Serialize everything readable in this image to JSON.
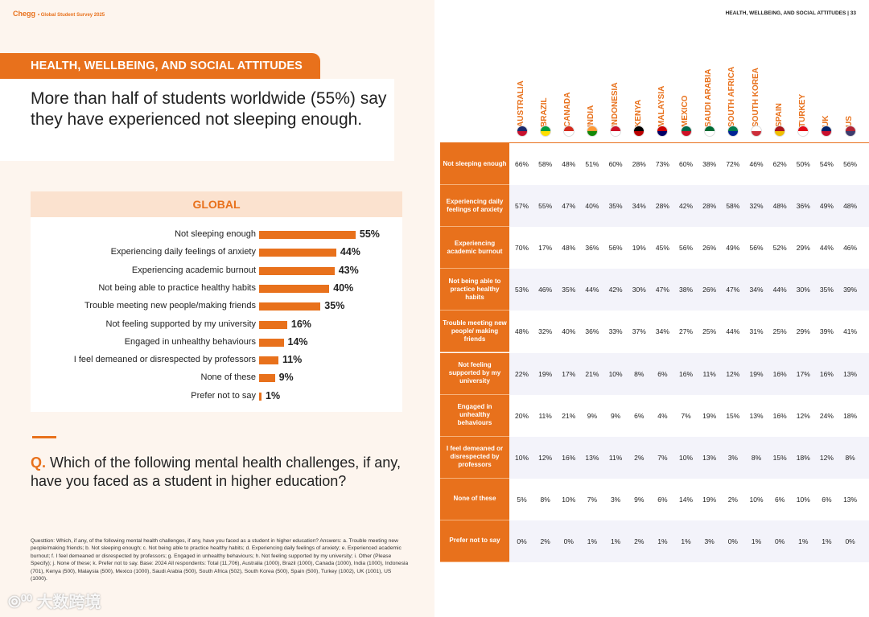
{
  "left": {
    "brand": "Chegg",
    "brand_sub": "• Global Student Survey 2025",
    "section": "HEALTH, WELLBEING, AND SOCIAL ATTITUDES",
    "headline": "More than half of students worldwide (55%) say they have experienced not sleeping enough.",
    "global_label": "GLOBAL",
    "q_prefix": "Q.",
    "question": "Which of the following mental health challenges, if any, have you faced as a student in higher education?",
    "footnote": "Questtion: Which, if any, of the following mental health challenges, if any, have you faced as a student in higher education? Answers: a. Trouble meeting new people/making friends; b. Not sleeping enough; c. Not being able to practice healthy habits; d. Experiencing daily feelings of anxiety; e. Experienced academic burnout; f. I feel demeaned or disrespected by professors; g. Engaged in unhealthy behaviours; h. Not feeling supported by my university; i. Other (Please Specify); j. None of these; k. Prefer not to say. Base: 2024 All respondents: Total (11,706), Australia (1000), Brazil (1000), Canada (1000), India (1000), Indonesia (701), Kenya (500), Malaysia (500), Mexico (1000), Saudi Arabia (500), South Africa (502), South Korea (500), Spain (500), Turkey (1002), UK (1001), US (1000).",
    "watermark": "大数跨境"
  },
  "chart_data": {
    "type": "bar",
    "title": "GLOBAL",
    "categories": [
      "Not sleeping enough",
      "Experiencing daily feelings of anxiety",
      "Experiencing academic burnout",
      "Not being able to practice healthy habits",
      "Trouble meeting new people/making friends",
      "Not feeling supported by my university",
      "Engaged in unhealthy behaviours",
      "I feel demeaned or disrespected by professors",
      "None of these",
      "Prefer not to say"
    ],
    "values": [
      55,
      44,
      43,
      40,
      35,
      16,
      14,
      11,
      9,
      1
    ],
    "labels": [
      "55%",
      "44%",
      "43%",
      "40%",
      "35%",
      "16%",
      "14%",
      "11%",
      "9%",
      "1%"
    ],
    "unit": "%",
    "color": "#e8711c"
  },
  "right": {
    "header": "HEALTH, WELLBEING, AND SOCIAL ATTITUDES  |  33",
    "countries": [
      "AUSTRALIA",
      "BRAZIL",
      "CANADA",
      "INDIA",
      "INDONESIA",
      "KENYA",
      "MALAYSIA",
      "MEXICO",
      "SAUDI ARABIA",
      "SOUTH AFRICA",
      "SOUTH KOREA",
      "SPAIN",
      "TURKEY",
      "UK",
      "US"
    ],
    "flag_colors": [
      [
        "#1a2a6c",
        "#c8102e"
      ],
      [
        "#009c3b",
        "#ffdf00"
      ],
      [
        "#d52b1e",
        "#fff"
      ],
      [
        "#ff9933",
        "#138808"
      ],
      [
        "#ce1126",
        "#fff"
      ],
      [
        "#000",
        "#bb0000"
      ],
      [
        "#cc0001",
        "#010066"
      ],
      [
        "#006847",
        "#ce1126"
      ],
      [
        "#006c35",
        "#fff"
      ],
      [
        "#007a4d",
        "#002395"
      ],
      [
        "#fff",
        "#cd2e3a"
      ],
      [
        "#aa151b",
        "#f1bf00"
      ],
      [
        "#e30a17",
        "#fff"
      ],
      [
        "#012169",
        "#c8102e"
      ],
      [
        "#b22234",
        "#3c3b6e"
      ]
    ],
    "rows": [
      {
        "label": "Not sleeping enough",
        "values": [
          "66%",
          "58%",
          "48%",
          "51%",
          "60%",
          "28%",
          "73%",
          "60%",
          "38%",
          "72%",
          "46%",
          "62%",
          "50%",
          "54%",
          "56%"
        ]
      },
      {
        "label": "Experiencing daily feelings of anxiety",
        "values": [
          "57%",
          "55%",
          "47%",
          "40%",
          "35%",
          "34%",
          "28%",
          "42%",
          "28%",
          "58%",
          "32%",
          "48%",
          "36%",
          "49%",
          "48%"
        ]
      },
      {
        "label": "Experiencing academic burnout",
        "values": [
          "70%",
          "17%",
          "48%",
          "36%",
          "56%",
          "19%",
          "45%",
          "56%",
          "26%",
          "49%",
          "56%",
          "52%",
          "29%",
          "44%",
          "46%"
        ]
      },
      {
        "label": "Not being able to practice healthy habits",
        "values": [
          "53%",
          "46%",
          "35%",
          "44%",
          "42%",
          "30%",
          "47%",
          "38%",
          "26%",
          "47%",
          "34%",
          "44%",
          "30%",
          "35%",
          "39%"
        ]
      },
      {
        "label": "Trouble meeting new people/ making friends",
        "values": [
          "48%",
          "32%",
          "40%",
          "36%",
          "33%",
          "37%",
          "34%",
          "27%",
          "25%",
          "44%",
          "31%",
          "25%",
          "29%",
          "39%",
          "41%"
        ]
      },
      {
        "label": "Not feeling supported by my university",
        "values": [
          "22%",
          "19%",
          "17%",
          "21%",
          "10%",
          "8%",
          "6%",
          "16%",
          "11%",
          "12%",
          "19%",
          "16%",
          "17%",
          "16%",
          "13%"
        ]
      },
      {
        "label": "Engaged in unhealthy behaviours",
        "values": [
          "20%",
          "11%",
          "21%",
          "9%",
          "9%",
          "6%",
          "4%",
          "7%",
          "19%",
          "15%",
          "13%",
          "16%",
          "12%",
          "24%",
          "18%"
        ]
      },
      {
        "label": "I feel demeaned or disrespected by professors",
        "values": [
          "10%",
          "12%",
          "16%",
          "13%",
          "11%",
          "2%",
          "7%",
          "10%",
          "13%",
          "3%",
          "8%",
          "15%",
          "18%",
          "12%",
          "8%"
        ]
      },
      {
        "label": "None of these",
        "values": [
          "5%",
          "8%",
          "10%",
          "7%",
          "3%",
          "9%",
          "6%",
          "14%",
          "19%",
          "2%",
          "10%",
          "6%",
          "10%",
          "6%",
          "13%"
        ]
      },
      {
        "label": "Prefer not to say",
        "values": [
          "0%",
          "2%",
          "0%",
          "1%",
          "1%",
          "2%",
          "1%",
          "1%",
          "3%",
          "0%",
          "1%",
          "0%",
          "1%",
          "1%",
          "0%"
        ]
      }
    ]
  }
}
